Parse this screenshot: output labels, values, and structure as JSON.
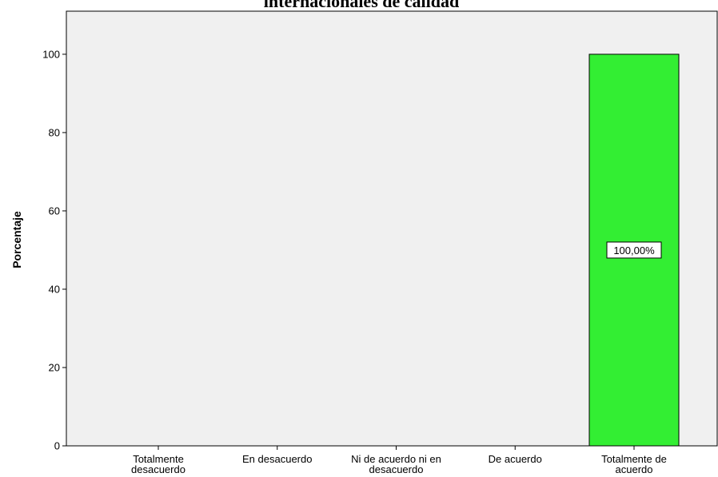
{
  "chart_data": {
    "type": "bar",
    "title": "internacionales de calidad",
    "ylabel": "Porcentaje",
    "xlabel": "",
    "categories": [
      [
        "Totalmente",
        "desacuerdo"
      ],
      [
        "En desacuerdo"
      ],
      [
        "Ni de acuerdo ni en",
        "desacuerdo"
      ],
      [
        "De acuerdo"
      ],
      [
        "Totalmente de",
        "acuerdo"
      ]
    ],
    "values": [
      0,
      0,
      0,
      0,
      100
    ],
    "data_labels": [
      "",
      "",
      "",
      "",
      "100,00%"
    ],
    "yticks": [
      0,
      20,
      40,
      60,
      80,
      100
    ],
    "ylim": [
      0,
      111
    ],
    "grid": false,
    "colors": {
      "bar": "#33ee33",
      "plot_background": "#f0f0f0",
      "label_box": "#ffffff"
    }
  }
}
